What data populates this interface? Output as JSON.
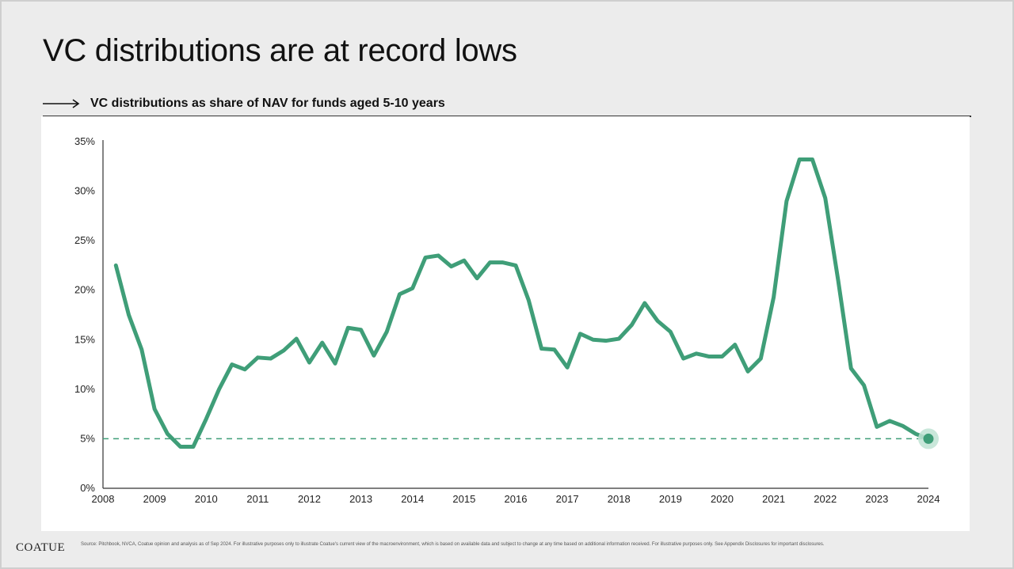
{
  "slide": {
    "title": "VC distributions are at record lows",
    "footer_logo": "COATUE",
    "footer_note": "Source: Pitchbook, NVCA, Coatue opinion and analysis as of Sep 2024. For illustrative purposes only to illustrate Coatue's current view of the macroenvironment, which is based on available data and subject to change at any time based on additional information received. For illustrative purposes only. See Appendix Disclosures for important disclosures."
  },
  "colors": {
    "line": "#3f9e78",
    "marker_halo": "#bfe3d3",
    "reference_line": "#3f9e78"
  },
  "chart_data": {
    "type": "line",
    "title": "VC distributions as share of NAV for funds aged 5-10 years",
    "xlabel": "",
    "ylabel": "",
    "xlim": [
      2008,
      2024
    ],
    "ylim": [
      0,
      35
    ],
    "x_ticks": [
      2008,
      2009,
      2010,
      2011,
      2012,
      2013,
      2014,
      2015,
      2016,
      2017,
      2018,
      2019,
      2020,
      2021,
      2022,
      2023,
      2024
    ],
    "y_ticks": [
      0,
      5,
      10,
      15,
      20,
      25,
      30,
      35
    ],
    "y_tick_labels": [
      "0%",
      "5%",
      "10%",
      "15%",
      "20%",
      "25%",
      "30%",
      "35%"
    ],
    "grid": false,
    "reference_line": {
      "y": 5,
      "style": "dashed"
    },
    "highlight_last_point": true,
    "series": [
      {
        "x": [
          2008.25,
          2008.5,
          2008.75,
          2009.0,
          2009.25,
          2009.5,
          2009.75,
          2010.0,
          2010.25,
          2010.5,
          2010.75,
          2011.0,
          2011.25,
          2011.5,
          2011.75,
          2012.0,
          2012.25,
          2012.5,
          2012.75,
          2013.0,
          2013.25,
          2013.5,
          2013.75,
          2014.0,
          2014.25,
          2014.5,
          2014.75,
          2015.0,
          2015.25,
          2015.5,
          2015.75,
          2016.0,
          2016.25,
          2016.5,
          2016.75,
          2017.0,
          2017.25,
          2017.5,
          2017.75,
          2018.0,
          2018.25,
          2018.5,
          2018.75,
          2019.0,
          2019.25,
          2019.5,
          2019.75,
          2020.0,
          2020.25,
          2020.5,
          2020.75,
          2021.0,
          2021.25,
          2021.5,
          2021.75,
          2022.0,
          2022.25,
          2022.5,
          2022.75,
          2023.0,
          2023.25,
          2023.5,
          2023.75,
          2024.0
        ],
        "values": [
          22.5,
          17.5,
          14.0,
          8.0,
          5.5,
          4.2,
          4.2,
          7.0,
          10.0,
          12.5,
          12.0,
          13.2,
          13.1,
          13.9,
          15.1,
          12.7,
          14.7,
          12.6,
          16.2,
          16.0,
          13.4,
          15.8,
          19.6,
          20.2,
          23.3,
          23.5,
          22.4,
          23.0,
          21.2,
          22.8,
          22.8,
          22.5,
          19.0,
          14.1,
          14.0,
          12.2,
          15.6,
          15.0,
          14.9,
          15.1,
          16.5,
          18.7,
          16.9,
          15.8,
          13.1,
          13.6,
          13.3,
          13.3,
          14.5,
          11.8,
          13.1,
          19.3,
          29.0,
          33.2,
          33.2,
          29.3,
          21.0,
          12.1,
          10.4,
          6.2,
          6.8,
          6.3,
          5.5,
          5.0
        ]
      }
    ]
  }
}
